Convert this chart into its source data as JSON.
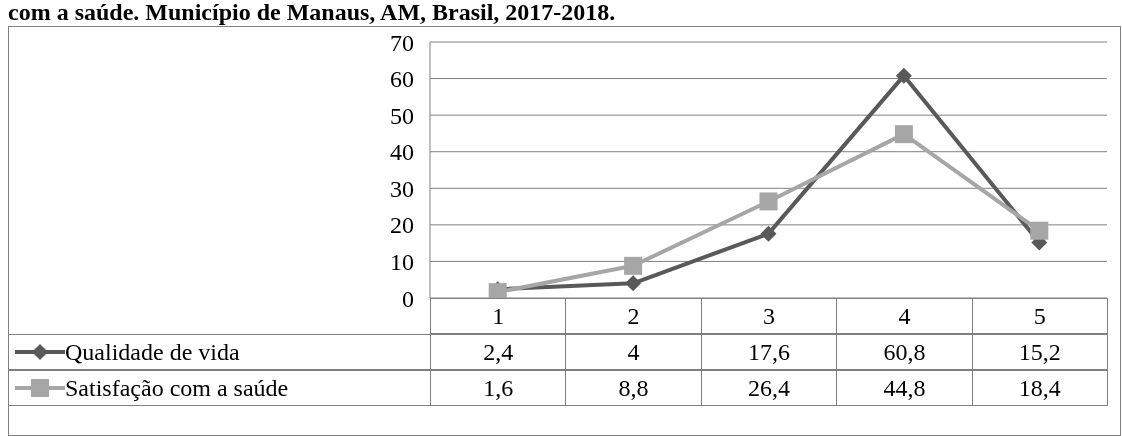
{
  "chart_data": {
    "type": "line",
    "title": "com a saúde. Município de Manaus, AM, Brasil, 2017-2018.",
    "categories": [
      "1",
      "2",
      "3",
      "4",
      "5"
    ],
    "series": [
      {
        "name": "Qualidade de vida",
        "color": "#595959",
        "marker": "diamond",
        "values": [
          2.4,
          4,
          17.6,
          60.8,
          15.2
        ],
        "value_labels": [
          "2,4",
          "4",
          "17,6",
          "60,8",
          "15,2"
        ]
      },
      {
        "name": "Satisfação com a saúde",
        "color": "#a6a6a6",
        "marker": "square",
        "values": [
          1.6,
          8.8,
          26.4,
          44.8,
          18.4
        ],
        "value_labels": [
          "1,6",
          "8,8",
          "26,4",
          "44,8",
          "18,4"
        ]
      }
    ],
    "ylim": [
      0,
      70
    ],
    "yticks": [
      0,
      10,
      20,
      30,
      40,
      50,
      60,
      70
    ],
    "grid": "y",
    "legend": "bottom"
  }
}
